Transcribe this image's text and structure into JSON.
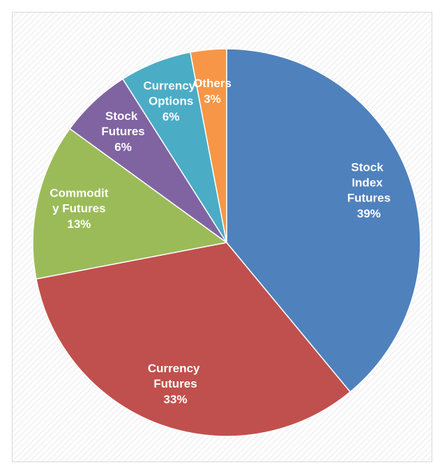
{
  "chart_data": {
    "type": "pie",
    "categories": [
      "Stock Index Futures",
      "Currency Futures",
      "Commodity Futures",
      "Stock Futures",
      "Currency Options",
      "Others"
    ],
    "values": [
      39,
      33,
      13,
      6,
      6,
      3
    ],
    "value_labels": [
      "39%",
      "33%",
      "13%",
      "6%",
      "6%",
      "3%"
    ],
    "colors": [
      "#4f81bd",
      "#c0504d",
      "#9bbb59",
      "#8064a2",
      "#4bacc6",
      "#f79646"
    ]
  }
}
